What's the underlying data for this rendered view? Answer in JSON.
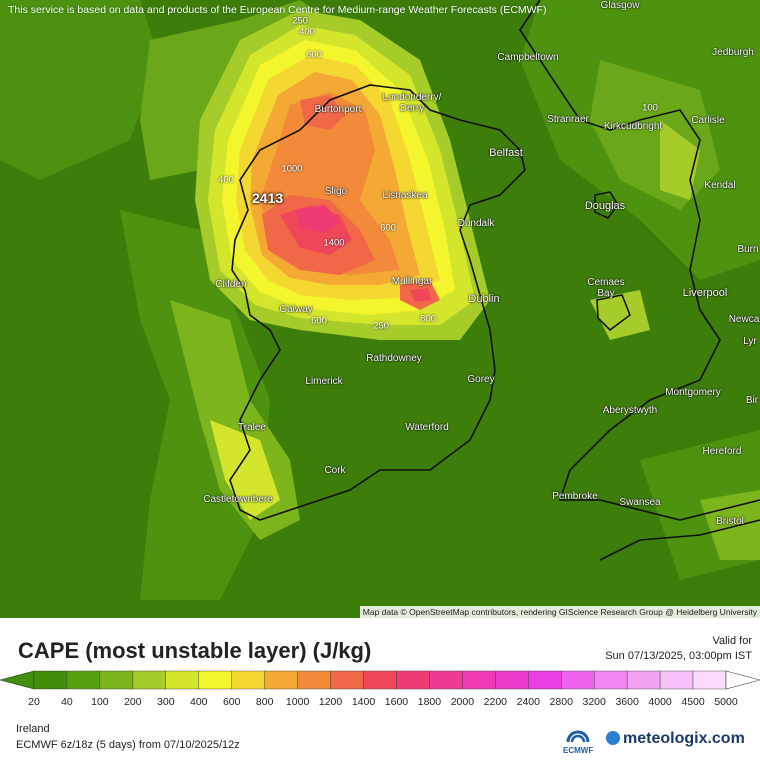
{
  "disclaimer": "This service is based on data and products of the European Centre for Medium-range Weather Forecasts (ECMWF)",
  "attribution": "Map data © OpenStreetMap contributors, rendering GIScience Research Group @ Heidelberg University",
  "max_value_label": "2413",
  "title": "CAPE (most unstable layer) (J/kg)",
  "valid_label": "Valid for",
  "valid_time": "Sun 07/13/2025, 03:00pm IST",
  "region": "Ireland",
  "model_run": "ECMWF 6z/18z (5 days)  from  07/10/2025/12z",
  "brand": "meteologix.com",
  "ecmwf_label": "ECMWF",
  "cities": {
    "glasgow": "Glasgow",
    "campbeltown": "Campbeltown",
    "jedburgh": "Jedburgh",
    "burtonport": "Burtonport",
    "londonderry_1": "Londonderry/",
    "londonderry_2": "Derry",
    "stranraer": "Stranraer",
    "kirkcudbright": "Kirkcudbright",
    "carlisle": "Carlisle",
    "belfast": "Belfast",
    "kendal": "Kendal",
    "sligo": "Sligo",
    "lisnaskea": "Lisnaskea",
    "douglas": "Douglas",
    "dundalk": "Dundalk",
    "burn": "Burn",
    "clifden": "Clifden",
    "mullingar": "Mullingar",
    "cemaes_1": "Cemaes",
    "cemaes_2": "Bay",
    "liverpool": "Liverpool",
    "dublin": "Dublin",
    "newca": "Newca",
    "lyr": "Lyr",
    "galway": "Galway",
    "rathdowney": "Rathdowney",
    "limerick": "Limerick",
    "gorey": "Gorey",
    "montgomery": "Montgomery",
    "bir": "Bir",
    "aberystwyth": "Aberystwyth",
    "tralee": "Tralee",
    "waterford": "Waterford",
    "hereford": "Hereford",
    "cork": "Cork",
    "castletownbere": "Castletownbere",
    "pembroke": "Pembroke",
    "swansea": "Swansea",
    "bristol": "Bristol"
  },
  "contours": {
    "c250a": "250",
    "c400a": "400",
    "c600a": "600",
    "c400b": "400",
    "c1000": "1000",
    "c1400": "1400",
    "c600b": "600",
    "c250b": "250",
    "c600c": "600",
    "c800": "800",
    "c100": "100"
  },
  "legend": {
    "ticks": [
      "20",
      "40",
      "100",
      "200",
      "300",
      "400",
      "600",
      "800",
      "1000",
      "1200",
      "1400",
      "1600",
      "1800",
      "2000",
      "2200",
      "2400",
      "2800",
      "3200",
      "3600",
      "4000",
      "4500",
      "5000"
    ],
    "colors": [
      "#3f8f0a",
      "#57a10d",
      "#7cb51c",
      "#a6cc2a",
      "#d4e62c",
      "#f3f52d",
      "#f5d731",
      "#f4a935",
      "#f28a3a",
      "#f06848",
      "#ef4659",
      "#ef3a74",
      "#ee3a94",
      "#ee3bb3",
      "#ec3ccb",
      "#e93fe0",
      "#ee62ee",
      "#f287f2",
      "#f3a1f3",
      "#f7c0f7",
      "#fbdafb"
    ]
  }
}
